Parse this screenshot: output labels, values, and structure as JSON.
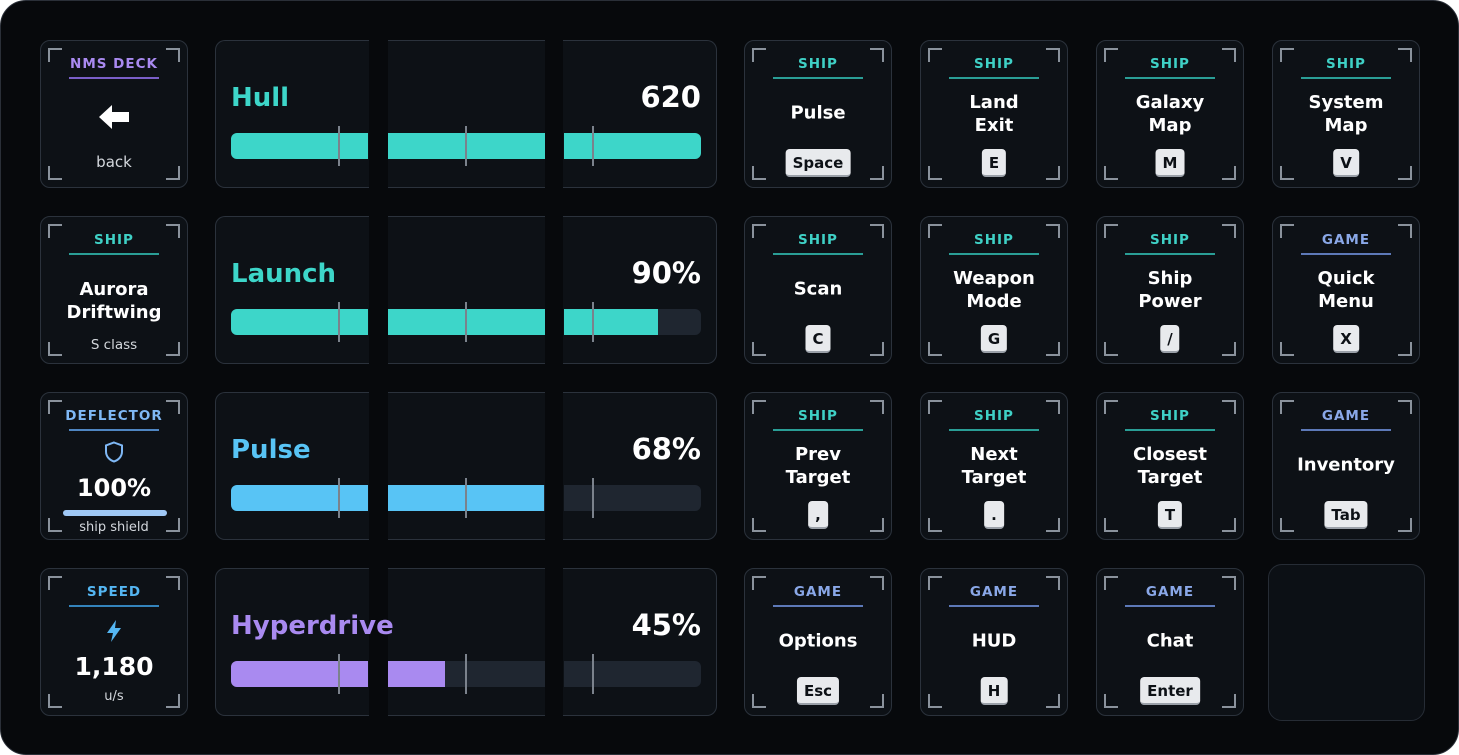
{
  "nav": {
    "tag": "NMS DECK",
    "icon": "arrow-left-icon",
    "label": "back"
  },
  "ship_card": {
    "tag": "SHIP",
    "name": "Aurora\nDriftwing",
    "class": "S class"
  },
  "deflector": {
    "tag": "DEFLECTOR",
    "icon": "shield-icon",
    "value": "100%",
    "level": 1.0,
    "label": "ship shield"
  },
  "speed": {
    "tag": "SPEED",
    "icon": "lightning-icon",
    "value": "1,180",
    "unit": "u/s"
  },
  "stats": [
    {
      "label": "Hull",
      "value": "620",
      "fraction": 1.0,
      "color": "#3dd6c9"
    },
    {
      "label": "Launch",
      "value": "90%",
      "fraction": 0.9,
      "color": "#3dd6c9"
    },
    {
      "label": "Pulse",
      "value": "68%",
      "fraction": 0.68,
      "color": "#58c4f5"
    },
    {
      "label": "Hyperdrive",
      "value": "45%",
      "fraction": 0.45,
      "color": "#a98af0"
    }
  ],
  "keys": [
    {
      "tag": "SHIP",
      "title": "Pulse",
      "key": "Space"
    },
    {
      "tag": "SHIP",
      "title": "Land\nExit",
      "key": "E"
    },
    {
      "tag": "SHIP",
      "title": "Galaxy\nMap",
      "key": "M"
    },
    {
      "tag": "SHIP",
      "title": "System\nMap",
      "key": "V"
    },
    {
      "tag": "SHIP",
      "title": "Scan",
      "key": "C"
    },
    {
      "tag": "SHIP",
      "title": "Weapon\nMode",
      "key": "G"
    },
    {
      "tag": "SHIP",
      "title": "Ship\nPower",
      "key": "/"
    },
    {
      "tag": "GAME",
      "title": "Quick\nMenu",
      "key": "X"
    },
    {
      "tag": "SHIP",
      "title": "Prev\nTarget",
      "key": ","
    },
    {
      "tag": "SHIP",
      "title": "Next\nTarget",
      "key": "."
    },
    {
      "tag": "SHIP",
      "title": "Closest\nTarget",
      "key": "T"
    },
    {
      "tag": "GAME",
      "title": "Inventory",
      "key": "Tab"
    },
    {
      "tag": "GAME",
      "title": "Options",
      "key": "Esc"
    },
    {
      "tag": "GAME",
      "title": "HUD",
      "key": "H"
    },
    {
      "tag": "GAME",
      "title": "Chat",
      "key": "Enter"
    }
  ]
}
